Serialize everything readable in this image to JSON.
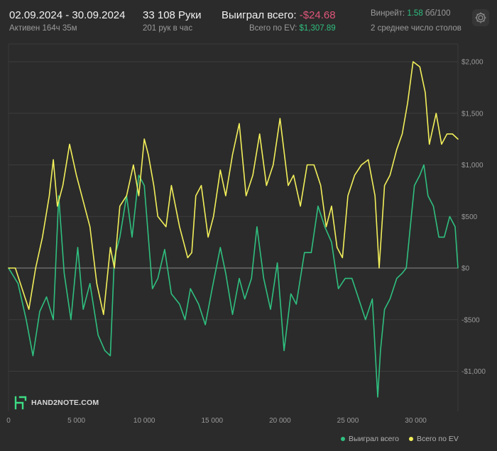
{
  "header": {
    "date_range": "02.09.2024 - 30.09.2024",
    "active_time": "Активен 164ч 35м",
    "hands": "33 108 Руки",
    "hands_per_hour": "201 рук в час",
    "won_total_label": "Выиграл всего:",
    "won_total_value": "-$24.68",
    "ev_total_label": "Всего по EV:",
    "ev_total_value": "$1,307.89",
    "winrate_label": "Винрейт:",
    "winrate_value": "1.58",
    "winrate_unit": "бб/100",
    "tables_label": "2 среднее число столов",
    "settings_icon": "gear-icon"
  },
  "colors": {
    "won": "#2fbf7f",
    "ev": "#f2ef5a",
    "negative": "#e0567a",
    "grid": "#3d3d3d",
    "zero_line": "#8a8a8a"
  },
  "watermark": {
    "brand": "HAND2NOTE.COM",
    "icon": "hand2note-logo-icon"
  },
  "chart_data": {
    "type": "line",
    "title": "",
    "xlabel": "",
    "ylabel": "",
    "x_ticks": [
      0,
      5000,
      10000,
      15000,
      20000,
      25000,
      30000
    ],
    "x_tick_labels": [
      "0",
      "5 000",
      "10 000",
      "15 000",
      "20 000",
      "25 000",
      "30 000"
    ],
    "y_ticks": [
      2000,
      1500,
      1000,
      500,
      0,
      -500,
      -1000
    ],
    "y_tick_labels": [
      "$2,000",
      "$1,500",
      "$1,000",
      "$500",
      "$0",
      "-$500",
      "-$1,000"
    ],
    "xlim": [
      0,
      33108
    ],
    "ylim": [
      -1300,
      2100
    ],
    "grid": true,
    "legend_position": "bottom-right",
    "series": [
      {
        "name": "Выиграл всего",
        "color": "#2fbf7f",
        "x": [
          0,
          700,
          1300,
          1800,
          2300,
          2800,
          3300,
          3700,
          4100,
          4600,
          5100,
          5500,
          6000,
          6600,
          7100,
          7500,
          7800,
          8200,
          8700,
          9100,
          9600,
          10000,
          10600,
          11000,
          11500,
          12000,
          12600,
          13000,
          13400,
          14000,
          14500,
          15000,
          15600,
          16000,
          16500,
          17000,
          17400,
          17900,
          18300,
          18800,
          19300,
          19800,
          20300,
          20800,
          21200,
          21800,
          22300,
          22800,
          23300,
          23800,
          24300,
          24800,
          25300,
          25800,
          26300,
          26800,
          27200,
          27400,
          27700,
          28100,
          28600,
          29000,
          29300,
          29600,
          29900,
          30300,
          30600,
          30900,
          31300,
          31700,
          32100,
          32500,
          32900,
          33108
        ],
        "values": [
          0,
          -150,
          -500,
          -850,
          -420,
          -280,
          -500,
          700,
          -50,
          -500,
          200,
          -400,
          -150,
          -650,
          -800,
          -850,
          100,
          300,
          700,
          300,
          900,
          800,
          -200,
          -100,
          180,
          -250,
          -350,
          -500,
          -200,
          -350,
          -550,
          -200,
          200,
          -50,
          -450,
          -100,
          -300,
          -100,
          400,
          -100,
          -400,
          50,
          -800,
          -250,
          -350,
          150,
          150,
          600,
          400,
          250,
          -200,
          -100,
          -100,
          -300,
          -500,
          -300,
          -1250,
          -800,
          -400,
          -300,
          -100,
          -50,
          0,
          400,
          800,
          900,
          1000,
          700,
          600,
          300,
          300,
          500,
          400,
          0
        ]
      },
      {
        "name": "Всего по EV",
        "color": "#f2ef5a",
        "x": [
          0,
          500,
          1000,
          1500,
          2000,
          2500,
          3000,
          3300,
          3600,
          4000,
          4500,
          5000,
          5400,
          6000,
          6500,
          7000,
          7500,
          7800,
          8200,
          8700,
          9200,
          9600,
          10000,
          10300,
          10700,
          11000,
          11600,
          12000,
          12600,
          13200,
          13500,
          13800,
          14200,
          14700,
          15100,
          15600,
          16000,
          16500,
          17000,
          17500,
          18000,
          18500,
          19000,
          19500,
          20000,
          20600,
          21000,
          21500,
          22000,
          22500,
          23000,
          23400,
          23800,
          24200,
          24600,
          25000,
          25500,
          26000,
          26500,
          27000,
          27300,
          27700,
          28100,
          28600,
          29000,
          29400,
          29800,
          30300,
          30700,
          31000,
          31500,
          31900,
          32300,
          32700,
          33108
        ],
        "values": [
          0,
          0,
          -200,
          -400,
          0,
          300,
          700,
          1050,
          600,
          800,
          1200,
          900,
          700,
          400,
          -150,
          -450,
          200,
          0,
          600,
          700,
          1000,
          700,
          1250,
          1100,
          800,
          500,
          400,
          800,
          400,
          100,
          150,
          700,
          800,
          300,
          500,
          950,
          700,
          1100,
          1400,
          700,
          900,
          1300,
          800,
          1000,
          1450,
          800,
          900,
          600,
          1000,
          1000,
          800,
          400,
          600,
          200,
          100,
          700,
          900,
          1000,
          1050,
          700,
          0,
          800,
          900,
          1150,
          1300,
          1600,
          2000,
          1950,
          1700,
          1200,
          1500,
          1200,
          1300,
          1300,
          1250
        ]
      }
    ]
  }
}
